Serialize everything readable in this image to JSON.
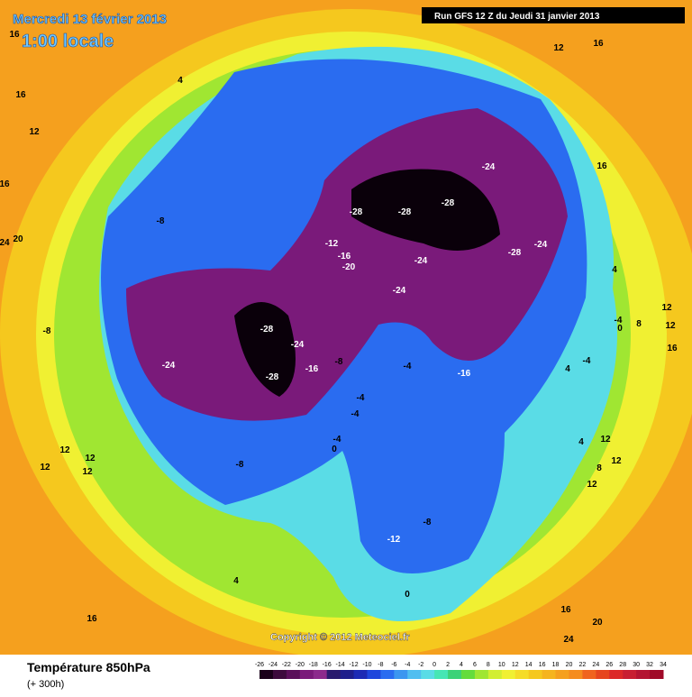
{
  "header": {
    "date": "Mercredi 13 février 2013",
    "time": "1:00 locale",
    "run": "Run GFS 12 Z du Jeudi 31 janvier 2013"
  },
  "map": {
    "labels": [
      4,
      16,
      16,
      12,
      16,
      24,
      20,
      -8,
      -12,
      -16,
      -20,
      -28,
      -28,
      -28,
      -24,
      -24,
      -28,
      -24,
      -24,
      -28,
      -24,
      -24,
      -28,
      -16,
      -8,
      -4,
      -16,
      -4,
      -4,
      -4,
      0,
      -8,
      -8,
      -12,
      0,
      4,
      16,
      12,
      12,
      12,
      12,
      12,
      16,
      4,
      -4,
      0,
      8,
      12,
      12,
      16,
      4,
      -4,
      4,
      12,
      12,
      8,
      12,
      16,
      20,
      24,
      -8,
      16
    ]
  },
  "copyright": "Copyright © 2012 Meteociel.fr",
  "footer": {
    "title": "Température 850hPa",
    "subtitle": "(+ 300h)"
  },
  "colorbar": {
    "ticks": [
      -26,
      -24,
      -22,
      -20,
      -18,
      -16,
      -14,
      -12,
      -10,
      -8,
      -6,
      -4,
      -2,
      0,
      2,
      4,
      6,
      8,
      10,
      12,
      14,
      16,
      18,
      20,
      22,
      24,
      26,
      28,
      30,
      32,
      34
    ],
    "colors": [
      "#1a001a",
      "#3d0a3d",
      "#5a0f5a",
      "#7a1a7a",
      "#8c2a8c",
      "#2a1a6e",
      "#1e1e8c",
      "#1c2ab4",
      "#1e46dc",
      "#2a6cf0",
      "#3c96f0",
      "#50bef0",
      "#5adce6",
      "#46e6b4",
      "#3cd278",
      "#64dc3c",
      "#a0e632",
      "#d2ee32",
      "#f0f032",
      "#f5dc28",
      "#f5c81e",
      "#f5b41e",
      "#f5a01e",
      "#f58c1e",
      "#f0641e",
      "#e6461e",
      "#dc2828",
      "#c81e32",
      "#b41432",
      "#a00a28"
    ]
  }
}
